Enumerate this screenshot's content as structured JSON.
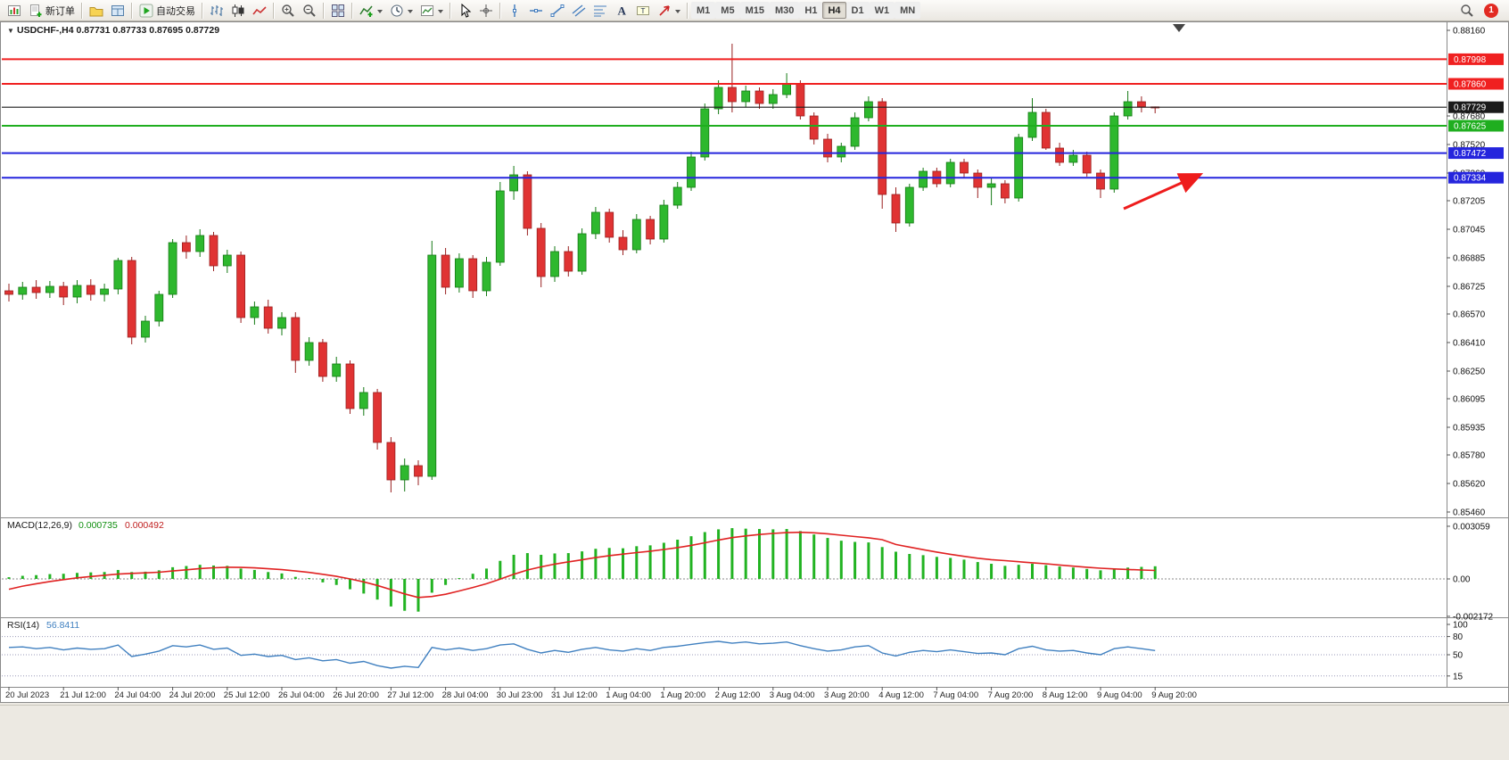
{
  "toolbar": {
    "left": [
      {
        "name": "new-chart",
        "icon": "chart-new"
      },
      {
        "name": "new-order",
        "icon": "order-new",
        "label": "新订单"
      },
      {
        "sep": true
      },
      {
        "name": "profiles",
        "icon": "profiles"
      },
      {
        "name": "data-window",
        "icon": "data-window"
      },
      {
        "sep": true
      },
      {
        "name": "auto-trading",
        "icon": "play",
        "label": "自动交易"
      },
      {
        "sep": true
      },
      {
        "name": "chart-bars",
        "icon": "bars"
      },
      {
        "name": "chart-candles",
        "icon": "candles"
      },
      {
        "name": "chart-line",
        "icon": "line-chart"
      },
      {
        "sep": true
      },
      {
        "name": "zoom-in",
        "icon": "zoom-in"
      },
      {
        "name": "zoom-out",
        "icon": "zoom-out"
      },
      {
        "sep": true
      },
      {
        "name": "tile-windows",
        "icon": "tile"
      },
      {
        "sep": true
      },
      {
        "name": "indicators",
        "icon": "indicators",
        "dropdown": true
      },
      {
        "name": "periods",
        "icon": "clock",
        "dropdown": true
      },
      {
        "name": "templates",
        "icon": "template",
        "dropdown": true
      },
      {
        "sep": true
      },
      {
        "name": "cursor",
        "icon": "cursor"
      },
      {
        "name": "crosshair",
        "icon": "crosshair"
      },
      {
        "sep": true
      },
      {
        "name": "vertical-line",
        "icon": "vline"
      },
      {
        "name": "horizontal-line",
        "icon": "hline"
      },
      {
        "name": "trendline",
        "icon": "trendline"
      },
      {
        "name": "equidistant-channel",
        "icon": "channel"
      },
      {
        "name": "fibonacci",
        "icon": "fibo"
      },
      {
        "name": "text",
        "icon": "text"
      },
      {
        "name": "text-label",
        "icon": "label"
      },
      {
        "name": "arrow-objects",
        "icon": "arrow-obj",
        "dropdown": true
      },
      {
        "sep": true
      }
    ],
    "timeframes": [
      {
        "label": "M1"
      },
      {
        "label": "M5"
      },
      {
        "label": "M15"
      },
      {
        "label": "M30"
      },
      {
        "label": "H1"
      },
      {
        "label": "H4",
        "active": true
      },
      {
        "label": "D1"
      },
      {
        "label": "W1"
      },
      {
        "label": "MN"
      }
    ],
    "right": [
      {
        "name": "search",
        "icon": "search"
      },
      {
        "name": "notifications",
        "icon": "badge",
        "badge": "1"
      }
    ]
  },
  "chart_data": [
    {
      "type": "candlestick",
      "title": "USDCHF-,H4",
      "symbol": "USDCHF-",
      "period": "H4",
      "ohlc_current": "0.87731 0.87733 0.87695 0.87729",
      "ylim": [
        0.8546,
        0.8816
      ],
      "bull_color": "#2eb82e",
      "bear_color": "#e03333",
      "y_ticks": [
        "0.88160",
        "0.87680",
        "0.87520",
        "0.87360",
        "0.87205",
        "0.87045",
        "0.86885",
        "0.86725",
        "0.86570",
        "0.86410",
        "0.86250",
        "0.86095",
        "0.85935",
        "0.85780",
        "0.85620",
        "0.85460"
      ],
      "x_labels": [
        "20 Jul 2023",
        "21 Jul 12:00",
        "24 Jul 04:00",
        "24 Jul 20:00",
        "25 Jul 12:00",
        "26 Jul 04:00",
        "26 Jul 20:00",
        "27 Jul 12:00",
        "28 Jul 04:00",
        "30 Jul 23:00",
        "31 Jul 12:00",
        "1 Aug 04:00",
        "1 Aug 20:00",
        "2 Aug 12:00",
        "3 Aug 04:00",
        "3 Aug 20:00",
        "4 Aug 12:00",
        "7 Aug 04:00",
        "7 Aug 20:00",
        "8 Aug 12:00",
        "9 Aug 04:00",
        "9 Aug 20:00"
      ],
      "hlines": [
        {
          "price": 0.87998,
          "label": "0.87998",
          "color": "#f02020"
        },
        {
          "price": 0.8786,
          "label": "0.87860",
          "color": "#f02020"
        },
        {
          "price": 0.87625,
          "label": "0.87625",
          "color": "#1fae1f"
        },
        {
          "price": 0.87472,
          "label": "0.87472",
          "color": "#2525dd"
        },
        {
          "price": 0.87334,
          "label": "0.87334",
          "color": "#2525dd"
        }
      ],
      "current_price": {
        "price": 0.87729,
        "label": "0.87729",
        "color": "#1a1a1a"
      },
      "annotations": [
        {
          "type": "arrow",
          "color": "#ee1c1c",
          "points_at": "support-line-0.87334"
        }
      ],
      "candles": [
        [
          0.867,
          0.8674,
          0.8664,
          0.8668
        ],
        [
          0.8668,
          0.8675,
          0.8665,
          0.8672
        ],
        [
          0.8672,
          0.8676,
          0.86655,
          0.8669
        ],
        [
          0.8669,
          0.86755,
          0.8666,
          0.86725
        ],
        [
          0.86725,
          0.8675,
          0.8662,
          0.86665
        ],
        [
          0.86665,
          0.8676,
          0.8663,
          0.8673
        ],
        [
          0.8673,
          0.86765,
          0.86645,
          0.8668
        ],
        [
          0.8668,
          0.8674,
          0.8664,
          0.8671
        ],
        [
          0.8671,
          0.86885,
          0.8668,
          0.8687
        ],
        [
          0.8687,
          0.8689,
          0.864,
          0.8644
        ],
        [
          0.8644,
          0.8656,
          0.8641,
          0.8653
        ],
        [
          0.8653,
          0.867,
          0.865,
          0.8668
        ],
        [
          0.8668,
          0.8699,
          0.8666,
          0.8697
        ],
        [
          0.8697,
          0.8701,
          0.8688,
          0.8692
        ],
        [
          0.8692,
          0.87045,
          0.8689,
          0.8701
        ],
        [
          0.8701,
          0.8703,
          0.8681,
          0.8684
        ],
        [
          0.8684,
          0.8693,
          0.868,
          0.869
        ],
        [
          0.869,
          0.8692,
          0.8652,
          0.8655
        ],
        [
          0.8655,
          0.8664,
          0.8651,
          0.8661
        ],
        [
          0.8661,
          0.8665,
          0.8646,
          0.8649
        ],
        [
          0.8649,
          0.8658,
          0.8645,
          0.8655
        ],
        [
          0.8655,
          0.8658,
          0.8624,
          0.8631
        ],
        [
          0.8631,
          0.8644,
          0.8628,
          0.8641
        ],
        [
          0.8641,
          0.8643,
          0.8619,
          0.8622
        ],
        [
          0.8622,
          0.8633,
          0.8619,
          0.8629
        ],
        [
          0.8629,
          0.8631,
          0.8601,
          0.8604
        ],
        [
          0.8604,
          0.8616,
          0.86,
          0.8613
        ],
        [
          0.8613,
          0.8615,
          0.8581,
          0.8585
        ],
        [
          0.8585,
          0.8588,
          0.8557,
          0.8564
        ],
        [
          0.8564,
          0.8576,
          0.85575,
          0.8572
        ],
        [
          0.8572,
          0.8575,
          0.8561,
          0.8566
        ],
        [
          0.8566,
          0.8698,
          0.8564,
          0.869
        ],
        [
          0.869,
          0.8694,
          0.8668,
          0.8672
        ],
        [
          0.8672,
          0.8691,
          0.8669,
          0.8688
        ],
        [
          0.8688,
          0.869,
          0.8666,
          0.867
        ],
        [
          0.867,
          0.8689,
          0.8667,
          0.8686
        ],
        [
          0.8686,
          0.8731,
          0.8684,
          0.8726
        ],
        [
          0.8726,
          0.874,
          0.8721,
          0.8735
        ],
        [
          0.8735,
          0.8737,
          0.8701,
          0.8705
        ],
        [
          0.8705,
          0.8708,
          0.8672,
          0.8678
        ],
        [
          0.8678,
          0.8695,
          0.8675,
          0.8692
        ],
        [
          0.8692,
          0.8695,
          0.8678,
          0.8681
        ],
        [
          0.8681,
          0.8705,
          0.8679,
          0.8702
        ],
        [
          0.8702,
          0.8717,
          0.8699,
          0.8714
        ],
        [
          0.8714,
          0.8716,
          0.8697,
          0.87
        ],
        [
          0.87,
          0.8704,
          0.869,
          0.8693
        ],
        [
          0.8693,
          0.8713,
          0.8691,
          0.871
        ],
        [
          0.871,
          0.8712,
          0.8696,
          0.8699
        ],
        [
          0.8699,
          0.8721,
          0.8697,
          0.8718
        ],
        [
          0.8718,
          0.8731,
          0.8716,
          0.8728
        ],
        [
          0.8728,
          0.8748,
          0.8726,
          0.8745
        ],
        [
          0.8745,
          0.8775,
          0.8743,
          0.8772
        ],
        [
          0.8772,
          0.8788,
          0.8769,
          0.8784
        ],
        [
          0.8784,
          0.88085,
          0.877,
          0.8776
        ],
        [
          0.8776,
          0.8785,
          0.8773,
          0.8782
        ],
        [
          0.8782,
          0.8784,
          0.8772,
          0.8775
        ],
        [
          0.8775,
          0.8783,
          0.8772,
          0.878
        ],
        [
          0.878,
          0.8792,
          0.8778,
          0.8786
        ],
        [
          0.8786,
          0.8788,
          0.8766,
          0.8768
        ],
        [
          0.8768,
          0.877,
          0.8752,
          0.8755
        ],
        [
          0.8755,
          0.8758,
          0.8742,
          0.8745
        ],
        [
          0.8745,
          0.8753,
          0.8742,
          0.8751
        ],
        [
          0.8751,
          0.877,
          0.8749,
          0.8767
        ],
        [
          0.8767,
          0.8779,
          0.8765,
          0.8776
        ],
        [
          0.8776,
          0.8778,
          0.8716,
          0.8724
        ],
        [
          0.8724,
          0.8728,
          0.8703,
          0.8708
        ],
        [
          0.8708,
          0.873,
          0.8706,
          0.8728
        ],
        [
          0.8728,
          0.8739,
          0.8726,
          0.8737
        ],
        [
          0.8737,
          0.8739,
          0.8728,
          0.873
        ],
        [
          0.873,
          0.8744,
          0.8728,
          0.8742
        ],
        [
          0.8742,
          0.8744,
          0.8733,
          0.8736
        ],
        [
          0.8736,
          0.8738,
          0.8722,
          0.8728
        ],
        [
          0.8728,
          0.8733,
          0.8718,
          0.873
        ],
        [
          0.873,
          0.8732,
          0.8719,
          0.8722
        ],
        [
          0.8722,
          0.8758,
          0.872,
          0.8756
        ],
        [
          0.8756,
          0.8778,
          0.8754,
          0.877
        ],
        [
          0.877,
          0.8772,
          0.8749,
          0.875
        ],
        [
          0.875,
          0.8753,
          0.874,
          0.8742
        ],
        [
          0.8742,
          0.8749,
          0.874,
          0.8746
        ],
        [
          0.8746,
          0.8748,
          0.8734,
          0.8736
        ],
        [
          0.8736,
          0.8738,
          0.8722,
          0.8727
        ],
        [
          0.8727,
          0.877,
          0.8725,
          0.8768
        ],
        [
          0.8768,
          0.8782,
          0.8766,
          0.8776
        ],
        [
          0.8776,
          0.8779,
          0.877,
          0.87731
        ],
        [
          0.87731,
          0.87733,
          0.87695,
          0.87729
        ]
      ]
    },
    {
      "type": "bar",
      "name": "MACD(12,26,9)",
      "value_main": "0.000735",
      "value_signal": "0.000492",
      "ylim": [
        -0.002172,
        0.003059
      ],
      "y_ticks": [
        "0.003059",
        "0.00",
        "-0.002172"
      ],
      "histogram_color": "#22b322",
      "signal_color": "#e02222",
      "histogram": [
        0.0001,
        0.00018,
        0.00022,
        0.00028,
        0.0003,
        0.00035,
        0.00038,
        0.0004,
        0.00052,
        0.0004,
        0.00042,
        0.0005,
        0.00068,
        0.00075,
        0.00082,
        0.00078,
        0.00076,
        0.0006,
        0.00052,
        0.0004,
        0.00032,
        0.00012,
        5e-05,
        -0.0002,
        -0.00035,
        -0.0006,
        -0.00085,
        -0.0012,
        -0.0016,
        -0.00185,
        -0.0019,
        -0.0008,
        -0.00035,
        5e-05,
        0.0003,
        0.0006,
        0.00105,
        0.0014,
        0.0015,
        0.0014,
        0.00148,
        0.0015,
        0.0016,
        0.00175,
        0.0018,
        0.00178,
        0.0019,
        0.00195,
        0.0021,
        0.00228,
        0.00248,
        0.00272,
        0.00288,
        0.00295,
        0.00292,
        0.0029,
        0.00288,
        0.0029,
        0.00278,
        0.00258,
        0.00238,
        0.00222,
        0.00215,
        0.00212,
        0.00185,
        0.00158,
        0.00145,
        0.00138,
        0.00128,
        0.00122,
        0.00112,
        0.00098,
        0.00088,
        0.00076,
        0.00082,
        0.00088,
        0.0008,
        0.00072,
        0.00066,
        0.00058,
        0.0005,
        0.00058,
        0.00066,
        0.0007,
        0.000735
      ],
      "signal": [
        -0.0006,
        -0.00042,
        -0.00028,
        -0.00015,
        -4e-05,
        6e-05,
        0.00014,
        0.00021,
        0.00028,
        0.00032,
        0.00035,
        0.00039,
        0.00046,
        0.00053,
        0.0006,
        0.00065,
        0.00068,
        0.00067,
        0.00064,
        0.00059,
        0.00054,
        0.00046,
        0.00038,
        0.00027,
        0.00015,
        0.0,
        -0.00017,
        -0.00038,
        -0.00062,
        -0.00087,
        -0.00108,
        -0.00102,
        -0.00089,
        -0.0007,
        -0.0005,
        -0.00028,
        -1e-05,
        0.00027,
        0.00052,
        0.0007,
        0.00086,
        0.00099,
        0.00111,
        0.00124,
        0.00135,
        0.00144,
        0.00153,
        0.00161,
        0.00171,
        0.00182,
        0.00195,
        0.0021,
        0.00226,
        0.0024,
        0.0025,
        0.00258,
        0.00264,
        0.00269,
        0.00271,
        0.00268,
        0.00262,
        0.00254,
        0.00246,
        0.00239,
        0.00228,
        0.002,
        0.00185,
        0.0017,
        0.00156,
        0.00143,
        0.00131,
        0.0012,
        0.00112,
        0.00106,
        0.001,
        0.00094,
        0.00088,
        0.00081,
        0.00074,
        0.00068,
        0.00062,
        0.00058,
        0.00055,
        0.00052,
        0.000492
      ]
    },
    {
      "type": "line",
      "name": "RSI(14)",
      "value_label": "56.8411",
      "ylim": [
        0,
        100
      ],
      "levels": [
        80,
        50,
        15
      ],
      "y_ticks": [
        "100",
        "80",
        "50",
        "15"
      ],
      "line_color": "#4080c0",
      "values": [
        62,
        63,
        60,
        62,
        58,
        61,
        59,
        60,
        66,
        47,
        51,
        56,
        65,
        63,
        66,
        59,
        61,
        49,
        51,
        47,
        49,
        42,
        45,
        40,
        42,
        36,
        39,
        32,
        28,
        31,
        29,
        62,
        58,
        61,
        57,
        60,
        66,
        68,
        59,
        53,
        57,
        54,
        59,
        62,
        58,
        56,
        60,
        57,
        62,
        64,
        67,
        70,
        72,
        69,
        71,
        68,
        69,
        71,
        65,
        60,
        56,
        58,
        63,
        65,
        53,
        48,
        54,
        57,
        55,
        58,
        55,
        52,
        53,
        50,
        60,
        64,
        58,
        56,
        57,
        53,
        50,
        60,
        63,
        60,
        56.8411
      ]
    }
  ]
}
